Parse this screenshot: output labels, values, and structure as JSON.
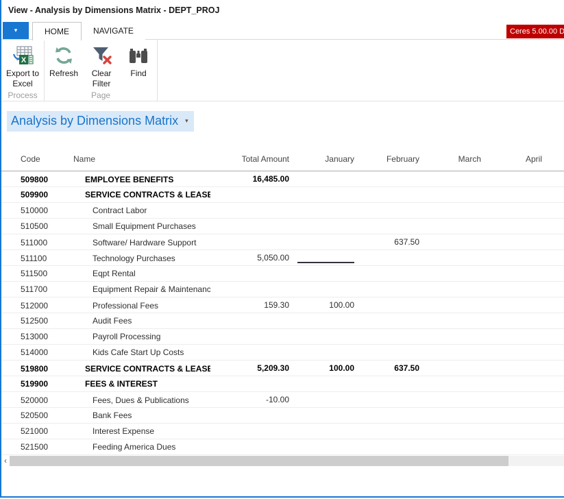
{
  "window": {
    "title": "View - Analysis by Dimensions Matrix - DEPT_PROJ",
    "license_badge": "Ceres 5.00.00 D",
    "menu_caret": "▾"
  },
  "tabs": [
    {
      "label": "HOME",
      "active": true
    },
    {
      "label": "NAVIGATE",
      "active": false
    }
  ],
  "ribbon": {
    "groups": [
      {
        "label": "Process",
        "buttons": [
          {
            "label": "Export to\nExcel",
            "icon": "export-to-excel-icon"
          }
        ]
      },
      {
        "label": "Page",
        "buttons": [
          {
            "label": "Refresh",
            "icon": "refresh-icon"
          },
          {
            "label": "Clear\nFilter",
            "icon": "clear-filter-icon"
          },
          {
            "label": "Find",
            "icon": "find-icon"
          }
        ]
      }
    ]
  },
  "page": {
    "title": "Analysis by Dimensions Matrix",
    "title_caret": "▾"
  },
  "table": {
    "columns": [
      "Code",
      "Name",
      "Total Amount",
      "January",
      "February",
      "March",
      "April"
    ],
    "rows": [
      {
        "code": "509800",
        "name": "EMPLOYEE BENEFITS",
        "bold": true,
        "total": "16,485.00",
        "january": "",
        "february": "",
        "march": "",
        "april": ""
      },
      {
        "code": "509900",
        "name": "SERVICE CONTRACTS & LEASES",
        "bold": true,
        "total": "",
        "january": "",
        "february": "",
        "march": "",
        "april": ""
      },
      {
        "code": "510000",
        "name": "Contract Labor",
        "bold": false,
        "total": "",
        "january": "",
        "february": "",
        "march": "",
        "april": ""
      },
      {
        "code": "510500",
        "name": "Small Equipment Purchases",
        "bold": false,
        "total": "",
        "january": "",
        "february": "",
        "march": "",
        "april": ""
      },
      {
        "code": "511000",
        "name": "Software/ Hardware Support",
        "bold": false,
        "total": "",
        "january": "",
        "february": "637.50",
        "march": "",
        "april": ""
      },
      {
        "code": "511100",
        "name": "Technology Purchases",
        "bold": false,
        "total": "5,050.00",
        "january": "",
        "february": "",
        "march": "",
        "april": "",
        "selected_cell": "january"
      },
      {
        "code": "511500",
        "name": "Eqpt Rental",
        "bold": false,
        "total": "",
        "january": "",
        "february": "",
        "march": "",
        "april": ""
      },
      {
        "code": "511700",
        "name": "Equipment Repair & Maintenance",
        "bold": false,
        "total": "",
        "january": "",
        "february": "",
        "march": "",
        "april": ""
      },
      {
        "code": "512000",
        "name": "Professional Fees",
        "bold": false,
        "total": "159.30",
        "january": "100.00",
        "february": "",
        "march": "",
        "april": ""
      },
      {
        "code": "512500",
        "name": "Audit Fees",
        "bold": false,
        "total": "",
        "january": "",
        "february": "",
        "march": "",
        "april": ""
      },
      {
        "code": "513000",
        "name": "Payroll Processing",
        "bold": false,
        "total": "",
        "january": "",
        "february": "",
        "march": "",
        "april": ""
      },
      {
        "code": "514000",
        "name": "Kids Cafe Start Up Costs",
        "bold": false,
        "total": "",
        "january": "",
        "february": "",
        "march": "",
        "april": ""
      },
      {
        "code": "519800",
        "name": "SERVICE CONTRACTS & LEASES",
        "bold": true,
        "total": "5,209.30",
        "january": "100.00",
        "february": "637.50",
        "march": "",
        "april": ""
      },
      {
        "code": "519900",
        "name": "FEES & INTEREST",
        "bold": true,
        "total": "",
        "january": "",
        "february": "",
        "march": "",
        "april": ""
      },
      {
        "code": "520000",
        "name": "Fees, Dues & Publications",
        "bold": false,
        "total": "-10.00",
        "january": "",
        "february": "",
        "march": "",
        "april": ""
      },
      {
        "code": "520500",
        "name": "Bank Fees",
        "bold": false,
        "total": "",
        "january": "",
        "february": "",
        "march": "",
        "april": ""
      },
      {
        "code": "521000",
        "name": "Interest Expense",
        "bold": false,
        "total": "",
        "january": "",
        "february": "",
        "march": "",
        "april": ""
      },
      {
        "code": "521500",
        "name": "Feeding America Dues",
        "bold": false,
        "total": "",
        "january": "",
        "february": "",
        "march": "",
        "april": ""
      }
    ]
  },
  "scrollbar": {
    "left_arrow": "‹"
  },
  "colors": {
    "accent_blue": "#1777D1",
    "badge_red": "#BE0000",
    "page_title_blue": "#1874CC",
    "page_title_highlight": "#D9E9F8",
    "refresh_green": "#74A794",
    "clear_filter_red": "#D6443C",
    "funnel_slate": "#4E5E72",
    "binoculars_gray": "#4D4D4D"
  }
}
